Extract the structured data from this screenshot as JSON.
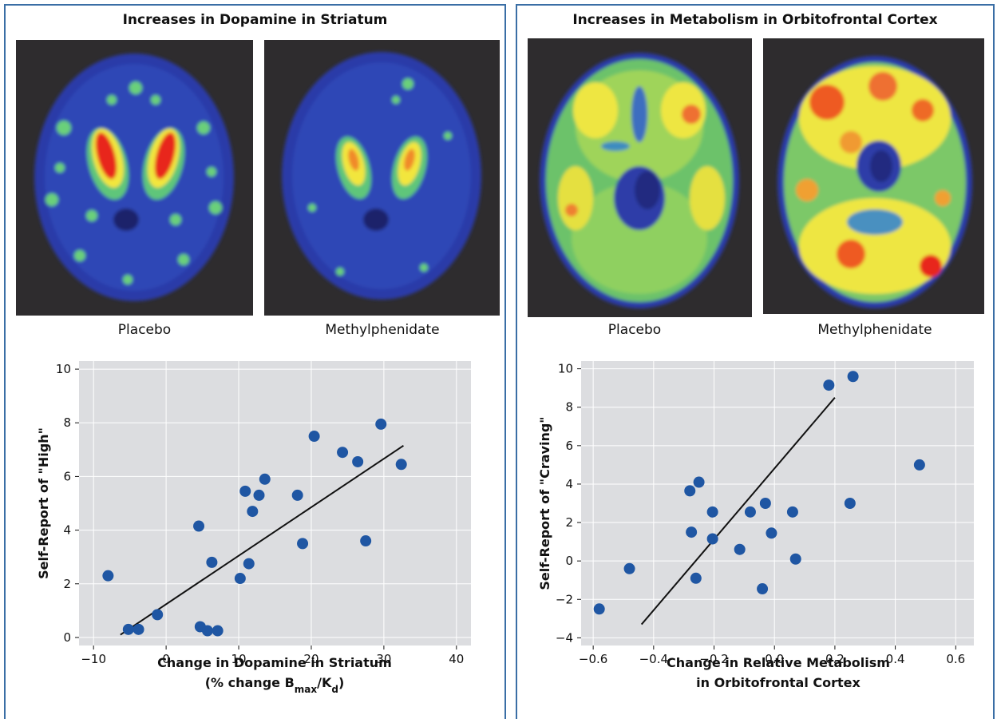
{
  "panels": {
    "left": {
      "title": "Increases in Dopamine in Striatum",
      "images": [
        {
          "caption": "Placebo"
        },
        {
          "caption": "Methylphenidate"
        }
      ]
    },
    "right": {
      "title": "Increases in Metabolism in Orbitofrontal Cortex",
      "images": [
        {
          "caption": "Placebo"
        },
        {
          "caption": "Methylphenidate"
        }
      ]
    }
  },
  "colors": {
    "border": "#3a6ea5",
    "plot_bg": "#dcdde0",
    "point": "#1f56a3",
    "line": "#111111"
  },
  "chart_data": [
    {
      "type": "scatter",
      "xlabel": "Change in Dopamine in Striatum",
      "xlabel_line2": [
        "(% change B",
        "max",
        "/K",
        "d",
        ")"
      ],
      "ylabel": "Self-Report of \"High\"",
      "xlim": [
        -12,
        42
      ],
      "ylim": [
        -0.3,
        10.3
      ],
      "xticks": [
        -10,
        0,
        10,
        20,
        30,
        40
      ],
      "yticks": [
        0,
        2,
        4,
        6,
        8,
        10
      ],
      "grid": true,
      "points": [
        [
          -8,
          2.3
        ],
        [
          -5.2,
          0.3
        ],
        [
          -3.8,
          0.3
        ],
        [
          -1.2,
          0.85
        ],
        [
          4.5,
          4.15
        ],
        [
          4.7,
          0.4
        ],
        [
          5.7,
          0.25
        ],
        [
          6.3,
          2.8
        ],
        [
          7.1,
          0.25
        ],
        [
          10.2,
          2.2
        ],
        [
          10.9,
          5.45
        ],
        [
          11.4,
          2.75
        ],
        [
          11.9,
          4.7
        ],
        [
          12.8,
          5.3
        ],
        [
          13.6,
          5.9
        ],
        [
          18.1,
          5.3
        ],
        [
          18.8,
          3.5
        ],
        [
          20.4,
          7.5
        ],
        [
          24.3,
          6.9
        ],
        [
          26.4,
          6.55
        ],
        [
          27.5,
          3.6
        ],
        [
          29.6,
          7.95
        ],
        [
          32.4,
          6.45
        ]
      ],
      "fit_line": [
        [
          -6.3,
          0.1
        ],
        [
          32.7,
          7.15
        ]
      ]
    },
    {
      "type": "scatter",
      "xlabel": "Change in Relative Metabolism",
      "xlabel_line2": "in Orbitofrontal Cortex",
      "ylabel": "Self-Report of \"Craving\"",
      "xlim": [
        -0.64,
        0.66
      ],
      "ylim": [
        -4.4,
        10.4
      ],
      "xticks": [
        -0.6,
        -0.4,
        -0.2,
        0.0,
        0.2,
        0.4,
        0.6
      ],
      "xtick_labels": [
        "−0.6",
        "−0.4",
        "−0.2",
        "0.0",
        "0.2",
        "0.4",
        "0.6"
      ],
      "yticks": [
        -4,
        -2,
        0,
        2,
        4,
        6,
        8,
        10
      ],
      "ytick_labels": [
        "−4",
        "−2",
        "0",
        "2",
        "4",
        "6",
        "8",
        "10"
      ],
      "grid": true,
      "points": [
        [
          -0.58,
          -2.5
        ],
        [
          -0.48,
          -0.4
        ],
        [
          -0.28,
          3.65
        ],
        [
          -0.275,
          1.5
        ],
        [
          -0.26,
          -0.9
        ],
        [
          -0.25,
          4.1
        ],
        [
          -0.205,
          2.55
        ],
        [
          -0.205,
          1.15
        ],
        [
          -0.115,
          0.6
        ],
        [
          -0.08,
          2.55
        ],
        [
          -0.04,
          -1.45
        ],
        [
          -0.03,
          3.0
        ],
        [
          -0.01,
          1.45
        ],
        [
          0.06,
          2.55
        ],
        [
          0.07,
          0.1
        ],
        [
          0.18,
          9.15
        ],
        [
          0.25,
          3.0
        ],
        [
          0.26,
          9.6
        ],
        [
          0.48,
          5.0
        ]
      ],
      "fit_line": [
        [
          -0.44,
          -3.3
        ],
        [
          0.2,
          8.5
        ]
      ]
    }
  ]
}
